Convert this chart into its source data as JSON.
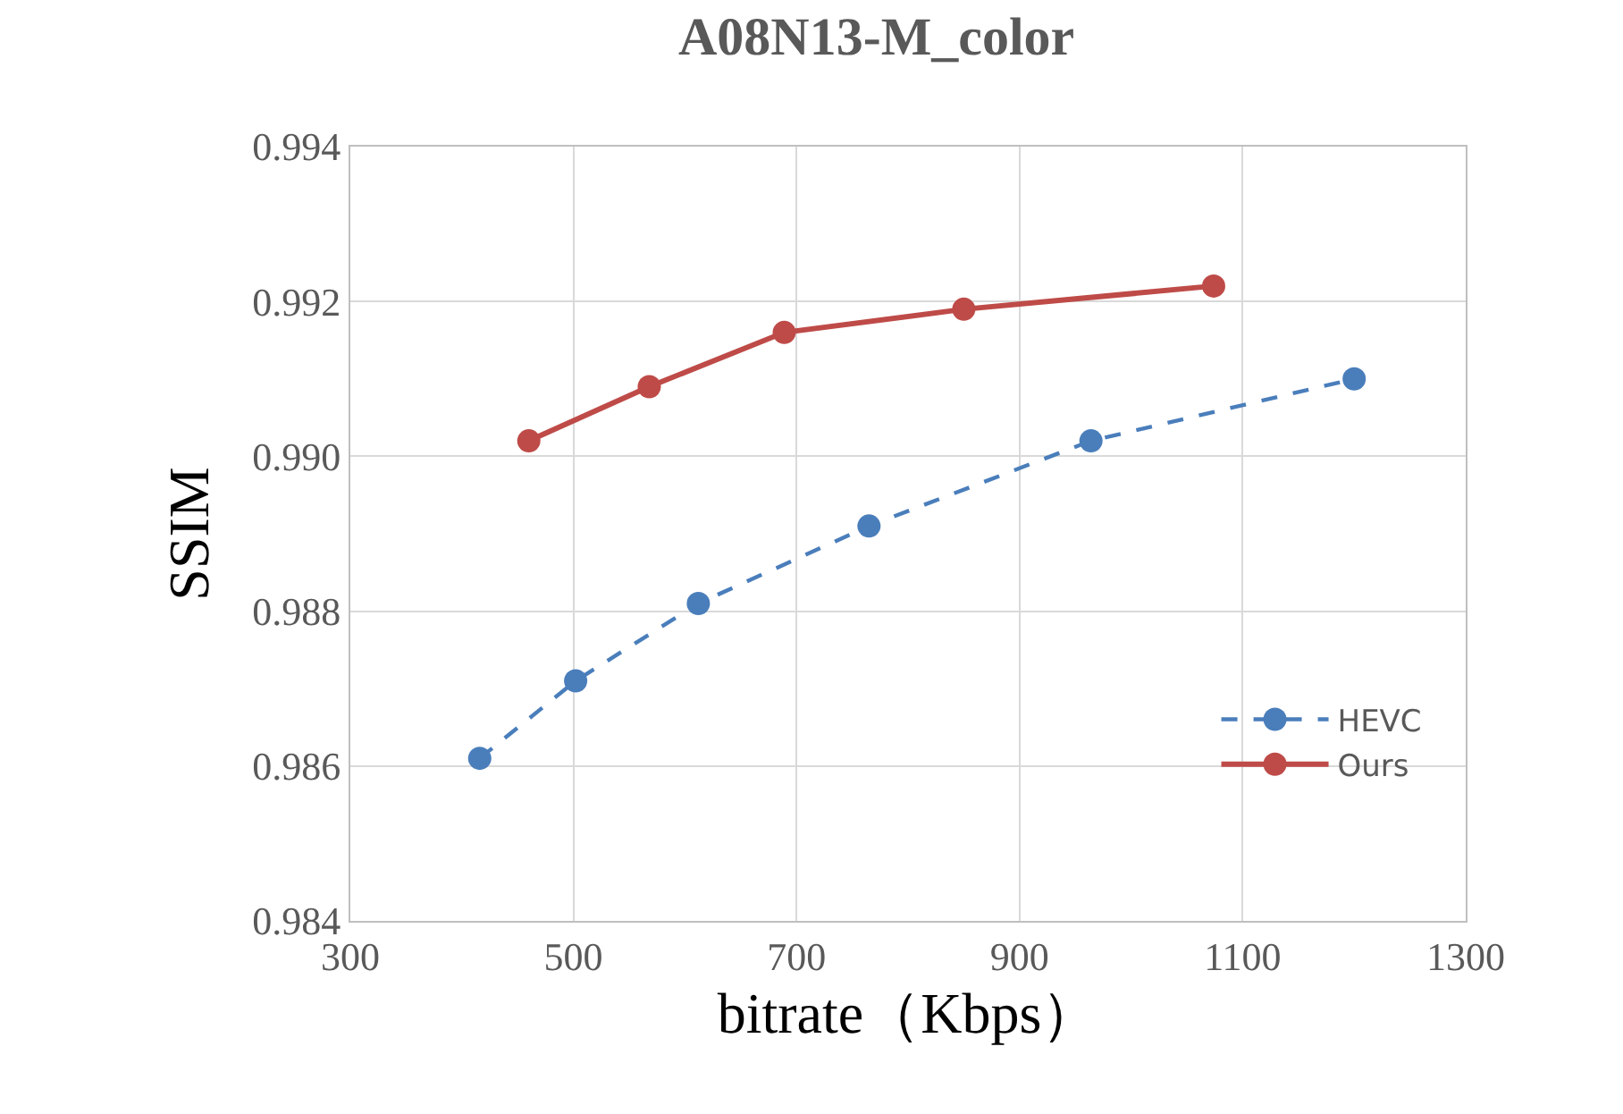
{
  "chart_data": {
    "type": "line",
    "title": "A08N13-M_color",
    "xlabel": "bitrate（Kbps）",
    "ylabel": "SSIM",
    "xlim": [
      300,
      1300
    ],
    "xticks": [
      300,
      500,
      700,
      900,
      1100,
      1300
    ],
    "ylim": [
      0.984,
      0.994
    ],
    "yticks": [
      {
        "value": 0.984,
        "label": "0.984"
      },
      {
        "value": 0.986,
        "label": "0.986"
      },
      {
        "value": 0.988,
        "label": "0.988"
      },
      {
        "value": 0.99,
        "label": "0.990"
      },
      {
        "value": 0.992,
        "label": "0.992"
      },
      {
        "value": 0.994,
        "label": "0.994"
      }
    ],
    "grid": true,
    "legend": "bottom right",
    "marker": "circle",
    "series": [
      {
        "name": "HEVC",
        "color": "#4a7ebb",
        "line_style": "dashed",
        "x": [
          416,
          502,
          612,
          765,
          964,
          1200
        ],
        "values": [
          0.9861,
          0.9871,
          0.9881,
          0.9891,
          0.9902,
          0.991
        ]
      },
      {
        "name": "Ours",
        "color": "#be4b48",
        "line_style": "solid",
        "x": [
          460,
          568,
          689,
          850,
          1074
        ],
        "values": [
          0.9902,
          0.9909,
          0.9916,
          0.9919,
          0.9922
        ]
      }
    ]
  }
}
